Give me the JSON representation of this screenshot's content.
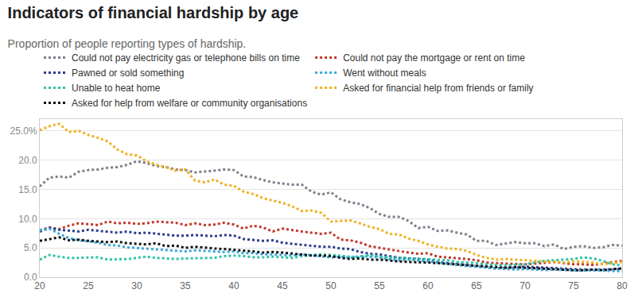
{
  "chart_data": {
    "type": "line",
    "title": "Indicators of financial hardship by age",
    "subtitle": "Proportion of people reporting types of hardship.",
    "x": [
      20,
      21,
      22,
      23,
      24,
      25,
      26,
      27,
      28,
      29,
      30,
      31,
      32,
      33,
      34,
      35,
      36,
      37,
      38,
      39,
      40,
      41,
      42,
      43,
      44,
      45,
      46,
      47,
      48,
      49,
      50,
      51,
      52,
      53,
      54,
      55,
      56,
      57,
      58,
      59,
      60,
      61,
      62,
      63,
      64,
      65,
      66,
      67,
      68,
      69,
      70,
      71,
      72,
      73,
      74,
      75,
      76,
      77,
      78,
      79,
      80
    ],
    "xlim": [
      20,
      80
    ],
    "xticks": [
      20,
      25,
      30,
      35,
      40,
      45,
      50,
      55,
      60,
      65,
      70,
      75,
      80
    ],
    "ylim": [
      0,
      27
    ],
    "yticks": [
      {
        "value": 0,
        "label": "0.0"
      },
      {
        "value": 5,
        "label": "5.0"
      },
      {
        "value": 10,
        "label": "10.0"
      },
      {
        "value": 15,
        "label": "15.0"
      },
      {
        "value": 20,
        "label": "20.0"
      },
      {
        "value": 25,
        "label": "25.0%"
      }
    ],
    "grid": true,
    "legend": "top",
    "line_style": "dotted",
    "series": [
      {
        "name": "Could not pay electricity gas or telephone bills on time",
        "color": "#7f7f8c",
        "values": [
          15.5,
          17,
          17.2,
          17,
          18,
          18.3,
          18.4,
          18.7,
          18.8,
          19.2,
          19.8,
          19.5,
          19,
          18.8,
          18.4,
          18.3,
          17.9,
          18,
          18.2,
          18.4,
          18.3,
          17.2,
          17.1,
          16.6,
          16.2,
          16,
          15.8,
          15.8,
          14.6,
          14.1,
          14.5,
          13.3,
          12.8,
          12.5,
          11.8,
          10.8,
          10.3,
          10.3,
          9.6,
          8.4,
          8.6,
          7.9,
          8,
          7.6,
          7.3,
          6.2,
          6.2,
          5.5,
          5.7,
          6,
          5.8,
          5.8,
          5.3,
          5.6,
          4.8,
          5.2,
          5.3,
          5,
          5.1,
          5.5,
          5.4
        ]
      },
      {
        "name": "Could not pay the mortgage or rent on time",
        "color": "#c0392b",
        "values": [
          8,
          8.5,
          8.2,
          8.8,
          9.2,
          9.1,
          8.9,
          9.5,
          9.2,
          9.3,
          9.1,
          9.2,
          9.5,
          9.4,
          9.3,
          8.9,
          9.2,
          8.9,
          9,
          9.3,
          9,
          8.3,
          8.8,
          8.5,
          7.8,
          8.3,
          8,
          7.8,
          7.6,
          7.4,
          7.6,
          6.4,
          6.3,
          5.9,
          5.3,
          5,
          4.8,
          4.5,
          4.2,
          4,
          4.1,
          3.5,
          3.4,
          3.3,
          3.1,
          2.9,
          2.5,
          2.4,
          2.3,
          2.2,
          2.2,
          2.3,
          2.5,
          2.6,
          2.4,
          2.2,
          2.2,
          2.1,
          2.3,
          2.6,
          2.8
        ]
      },
      {
        "name": "Pawned or sold something",
        "color": "#2c3e8c",
        "values": [
          7.8,
          8.4,
          8.1,
          8,
          7.8,
          8.1,
          7.9,
          7.7,
          7.6,
          7.8,
          7.5,
          7.6,
          7.4,
          7.3,
          7.1,
          7.1,
          7.2,
          7.1,
          7,
          7.2,
          7.1,
          6.5,
          6.3,
          6.2,
          6.3,
          5.9,
          5.7,
          5.5,
          5.3,
          5.2,
          5.2,
          4.9,
          4.8,
          4.3,
          4,
          3.9,
          3.6,
          3.3,
          3.2,
          3.1,
          3,
          2.6,
          2.4,
          2.2,
          2,
          1.9,
          1.7,
          1.5,
          1.6,
          1.6,
          1.8,
          1.7,
          1.6,
          1.5,
          1.4,
          1.4,
          1.3,
          1.2,
          1.3,
          1.4,
          1.4
        ]
      },
      {
        "name": "Went without meals",
        "color": "#3aa8d8",
        "values": [
          8,
          8.3,
          7.4,
          6.7,
          6.3,
          6.1,
          5.9,
          5.5,
          5.4,
          5.1,
          5,
          4.9,
          4.7,
          4.7,
          4.6,
          4.4,
          4.6,
          4.5,
          4.4,
          4.3,
          4.4,
          4.1,
          4.1,
          3.9,
          3.9,
          3.8,
          3.7,
          3.9,
          3.7,
          3.6,
          3.4,
          3.5,
          3.3,
          3.6,
          3.5,
          3.4,
          3.1,
          2.9,
          3,
          2.9,
          2.7,
          2.5,
          2.3,
          2.1,
          1.9,
          1.8,
          1.6,
          1.5,
          1.4,
          1.3,
          1.4,
          1.3,
          1.2,
          1.3,
          1.2,
          1.1,
          1.1,
          1.2,
          1.1,
          1,
          1
        ]
      },
      {
        "name": "Unable to heat home",
        "color": "#2ec4a6",
        "values": [
          3,
          3.8,
          3.5,
          3.3,
          3.3,
          3.3,
          3.4,
          3,
          3,
          3.1,
          3.3,
          3.5,
          3.3,
          3.2,
          3.1,
          3.2,
          3.2,
          3.2,
          3.3,
          3.6,
          3.7,
          3.6,
          3.4,
          3.4,
          3.5,
          3.4,
          3.3,
          3.6,
          3.7,
          3.9,
          3.8,
          3.6,
          3.5,
          3.4,
          3.8,
          3.5,
          3.4,
          3.3,
          3.2,
          3.1,
          3,
          3,
          2.9,
          2.6,
          2.5,
          2.4,
          2.2,
          2.1,
          2,
          2.1,
          2.2,
          2.5,
          2.8,
          2.9,
          3,
          3.1,
          3.4,
          3.2,
          2.8,
          2.2,
          2
        ]
      },
      {
        "name": "Asked for financial help from friends or family",
        "color": "#f0b020",
        "values": [
          25.1,
          25.8,
          26.2,
          24.8,
          25,
          24.3,
          23.8,
          23.2,
          21.8,
          21,
          20.8,
          19.8,
          19.2,
          18.8,
          18.2,
          18.4,
          16.5,
          16.2,
          16.7,
          15.8,
          15.6,
          14.6,
          14.2,
          13.5,
          13.1,
          12.7,
          12.1,
          11.3,
          11.4,
          11,
          9.5,
          9.6,
          9.7,
          9.2,
          8.6,
          8.2,
          7.4,
          7.3,
          6.6,
          6.2,
          5.6,
          5.2,
          4.9,
          4.8,
          4.5,
          3.8,
          3.3,
          3,
          3.1,
          3,
          2.9,
          2.7,
          2.7,
          2.6,
          2.5,
          2.7,
          2.6,
          2.5,
          2.2,
          2.4,
          2.6
        ]
      },
      {
        "name": "Asked for help from welfare or community organisations",
        "color": "#111111",
        "values": [
          6.2,
          6.5,
          6.8,
          6.3,
          6.4,
          6.2,
          6.1,
          6,
          6.1,
          5.8,
          5.7,
          5.6,
          5.8,
          5.3,
          5.4,
          5,
          5.2,
          5,
          4.9,
          4.8,
          4.7,
          4.6,
          4.4,
          4.2,
          4.3,
          4.2,
          4,
          3.8,
          3.7,
          3.7,
          3.6,
          3.3,
          3.1,
          3.2,
          3,
          3,
          2.8,
          2.7,
          2.6,
          2.6,
          2.5,
          2.4,
          2.3,
          2.1,
          2,
          1.9,
          1.8,
          1.7,
          1.6,
          1.7,
          1.6,
          1.5,
          1.4,
          1.4,
          1.3,
          1.2,
          1.2,
          1.3,
          1.2,
          1.4,
          1.5
        ]
      }
    ]
  }
}
